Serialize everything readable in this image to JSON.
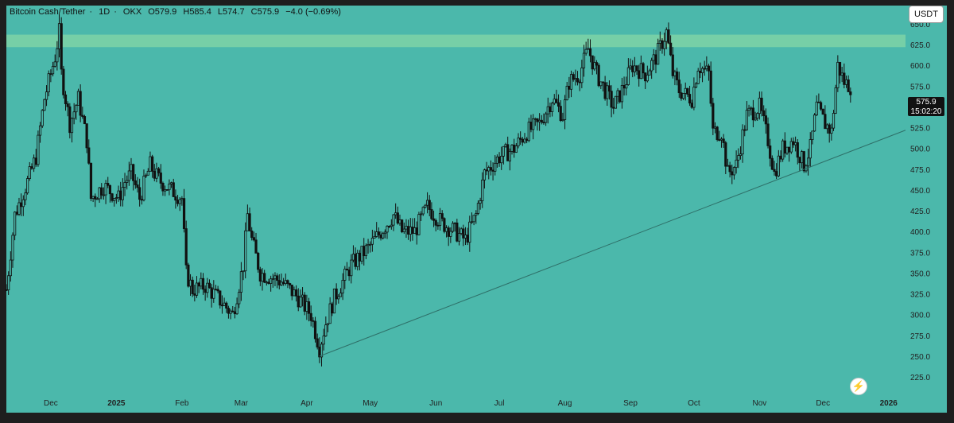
{
  "header": {
    "symbol": "Bitcoin Cash/Tether",
    "interval": "1D",
    "exchange": "OKX",
    "open": "O579.9",
    "high": "H585.4",
    "low": "L574.7",
    "close": "C575.9",
    "change": "−4.0 (−0.69%)"
  },
  "currency_button": "USDT",
  "last_price_badge": {
    "price": "575.9",
    "countdown": "15:02:20"
  },
  "logo_icon": "lightning-bolt-icon",
  "colors": {
    "chart_background": "#4bb8ab",
    "resistance_zone": "#7bd1a6",
    "candles": "#111111",
    "trendline": "#2e6f68",
    "frame": "#1e1e1e"
  },
  "chart_data": {
    "type": "candlestick",
    "title": "",
    "xlabel": "",
    "ylabel": "",
    "ylim": [
      205,
      672
    ],
    "y_ticks": [
      225,
      250,
      275,
      300,
      325,
      350,
      375,
      400,
      425,
      450,
      475,
      500,
      525,
      550,
      575,
      600,
      625,
      650
    ],
    "y_tick_labels": [
      "225.0",
      "250.0",
      "275.0",
      "300.0",
      "325.0",
      "350.0",
      "375.0",
      "400.0",
      "425.0",
      "450.0",
      "475.0",
      "500.0",
      "525.0",
      "550.0",
      "575.0",
      "600.0",
      "625.0",
      "650.0"
    ],
    "x_labels": [
      "Dec",
      "2025",
      "Feb",
      "Mar",
      "Apr",
      "May",
      "Jun",
      "Jul",
      "Aug",
      "Sep",
      "Oct",
      "Nov",
      "Dec",
      "2026"
    ],
    "x_label_dates": [
      "2024-12-01",
      "2025-01-01",
      "2025-02-01",
      "2025-03-01",
      "2025-04-01",
      "2025-05-01",
      "2025-06-01",
      "2025-07-01",
      "2025-08-01",
      "2025-09-01",
      "2025-10-01",
      "2025-11-01",
      "2025-12-01",
      "2026-01-01"
    ],
    "x_range": [
      "2024-11-10",
      "2026-01-09"
    ],
    "resistance_zone": [
      622,
      637
    ],
    "trendline": {
      "start": [
        "2025-04-07",
        250
      ],
      "end": [
        "2026-01-09",
        522
      ]
    },
    "close_path": [
      [
        "2024-11-10",
        330
      ],
      [
        "2024-11-14",
        420
      ],
      [
        "2024-11-20",
        460
      ],
      [
        "2024-11-24",
        490
      ],
      [
        "2024-11-28",
        560
      ],
      [
        "2024-12-03",
        610
      ],
      [
        "2024-12-05",
        640
      ],
      [
        "2024-12-06",
        590
      ],
      [
        "2024-12-10",
        530
      ],
      [
        "2024-12-14",
        560
      ],
      [
        "2024-12-18",
        510
      ],
      [
        "2024-12-20",
        440
      ],
      [
        "2024-12-26",
        455
      ],
      [
        "2025-01-02",
        440
      ],
      [
        "2025-01-05",
        460
      ],
      [
        "2025-01-08",
        470
      ],
      [
        "2025-01-12",
        440
      ],
      [
        "2025-01-17",
        480
      ],
      [
        "2025-01-19",
        470
      ],
      [
        "2025-01-22",
        460
      ],
      [
        "2025-02-01",
        440
      ],
      [
        "2025-02-03",
        350
      ],
      [
        "2025-02-06",
        330
      ],
      [
        "2025-02-12",
        335
      ],
      [
        "2025-02-18",
        320
      ],
      [
        "2025-02-25",
        300
      ],
      [
        "2025-03-02",
        360
      ],
      [
        "2025-03-04",
        420
      ],
      [
        "2025-03-06",
        390
      ],
      [
        "2025-03-10",
        350
      ],
      [
        "2025-03-20",
        340
      ],
      [
        "2025-03-28",
        320
      ],
      [
        "2025-04-03",
        300
      ],
      [
        "2025-04-07",
        260
      ],
      [
        "2025-04-10",
        290
      ],
      [
        "2025-04-14",
        320
      ],
      [
        "2025-04-22",
        360
      ],
      [
        "2025-04-30",
        380
      ],
      [
        "2025-05-09",
        410
      ],
      [
        "2025-05-12",
        420
      ],
      [
        "2025-05-16",
        400
      ],
      [
        "2025-05-22",
        400
      ],
      [
        "2025-05-28",
        430
      ],
      [
        "2025-06-04",
        410
      ],
      [
        "2025-06-10",
        400
      ],
      [
        "2025-06-15",
        390
      ],
      [
        "2025-06-20",
        420
      ],
      [
        "2025-06-24",
        470
      ],
      [
        "2025-07-01",
        490
      ],
      [
        "2025-07-08",
        500
      ],
      [
        "2025-07-14",
        520
      ],
      [
        "2025-07-20",
        530
      ],
      [
        "2025-07-26",
        560
      ],
      [
        "2025-07-31",
        540
      ],
      [
        "2025-08-03",
        580
      ],
      [
        "2025-08-08",
        590
      ],
      [
        "2025-08-12",
        620
      ],
      [
        "2025-08-16",
        590
      ],
      [
        "2025-08-20",
        570
      ],
      [
        "2025-08-24",
        550
      ],
      [
        "2025-08-28",
        570
      ],
      [
        "2025-09-02",
        600
      ],
      [
        "2025-09-08",
        590
      ],
      [
        "2025-09-13",
        610
      ],
      [
        "2025-09-18",
        640
      ],
      [
        "2025-09-21",
        590
      ],
      [
        "2025-09-24",
        570
      ],
      [
        "2025-09-30",
        560
      ],
      [
        "2025-10-03",
        600
      ],
      [
        "2025-10-08",
        590
      ],
      [
        "2025-10-10",
        520
      ],
      [
        "2025-10-14",
        520
      ],
      [
        "2025-10-17",
        470
      ],
      [
        "2025-10-21",
        480
      ],
      [
        "2025-10-26",
        540
      ],
      [
        "2025-11-01",
        550
      ],
      [
        "2025-11-05",
        510
      ],
      [
        "2025-11-08",
        470
      ],
      [
        "2025-11-12",
        500
      ],
      [
        "2025-11-17",
        510
      ],
      [
        "2025-11-22",
        480
      ],
      [
        "2025-11-25",
        500
      ],
      [
        "2025-11-28",
        550
      ],
      [
        "2025-12-02",
        530
      ],
      [
        "2025-12-05",
        520
      ],
      [
        "2025-12-08",
        600
      ],
      [
        "2025-12-11",
        580
      ],
      [
        "2025-12-14",
        575
      ]
    ]
  }
}
